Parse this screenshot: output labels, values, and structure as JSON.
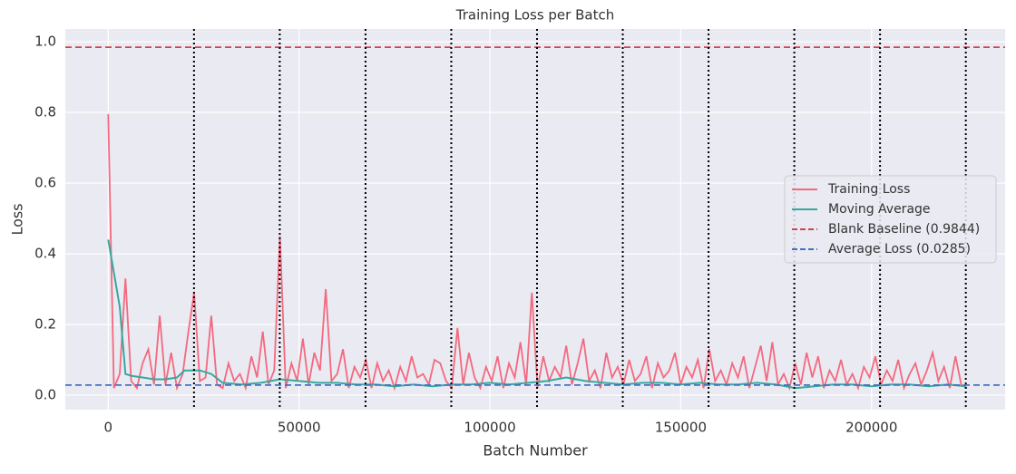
{
  "chart_data": {
    "type": "line",
    "title": "Training Loss per Batch",
    "xlabel": "Batch Number",
    "ylabel": "Loss",
    "xlim": [
      -11250,
      235000
    ],
    "ylim": [
      -0.041,
      1.036
    ],
    "xticks": [
      0,
      50000,
      100000,
      150000,
      200000
    ],
    "yticks": [
      {
        "value": 0,
        "label": "0.0"
      },
      0.2,
      0.4,
      0.6,
      0.8,
      {
        "value": 1,
        "label": "1.0"
      }
    ],
    "grid": true,
    "legend": "center right",
    "series": [
      {
        "name": "Training Loss",
        "color": "#f4697f",
        "x": [
          0,
          1500,
          3000,
          4500,
          6000,
          7500,
          9000,
          10500,
          12000,
          13500,
          15000,
          16500,
          18000,
          19500,
          21000,
          22500,
          24000,
          25500,
          27000,
          28500,
          30000,
          31500,
          33000,
          34500,
          36000,
          37500,
          39000,
          40500,
          42000,
          43500,
          45000,
          46500,
          48000,
          49500,
          51000,
          52500,
          54000,
          55500,
          57000,
          58500,
          60000,
          61500,
          63000,
          64500,
          66000,
          67500,
          69000,
          70500,
          72000,
          73500,
          75000,
          76500,
          78000,
          79500,
          81000,
          82500,
          84000,
          85500,
          87000,
          88500,
          90000,
          91500,
          93000,
          94500,
          96000,
          97500,
          99000,
          100500,
          102000,
          103500,
          105000,
          106500,
          108000,
          109500,
          111000,
          112500,
          114000,
          115500,
          117000,
          118500,
          120000,
          121500,
          123000,
          124500,
          126000,
          127500,
          129000,
          130500,
          132000,
          133500,
          135000,
          136500,
          138000,
          139500,
          141000,
          142500,
          144000,
          145500,
          147000,
          148500,
          150000,
          151500,
          153000,
          154500,
          156000,
          157500,
          159000,
          160500,
          162000,
          163500,
          165000,
          166500,
          168000,
          169500,
          171000,
          172500,
          174000,
          175500,
          177000,
          178500,
          180000,
          181500,
          183000,
          184500,
          186000,
          187500,
          189000,
          190500,
          192000,
          193500,
          195000,
          196500,
          198000,
          199500,
          201000,
          202500,
          204000,
          205500,
          207000,
          208500,
          210000,
          211500,
          213000,
          214500,
          216000,
          217500,
          219000,
          220500,
          222000,
          223500,
          225000
        ],
        "values": [
          0.795,
          0.02,
          0.06,
          0.33,
          0.04,
          0.02,
          0.09,
          0.13,
          0.03,
          0.225,
          0.03,
          0.12,
          0.02,
          0.06,
          0.18,
          0.29,
          0.04,
          0.05,
          0.225,
          0.03,
          0.02,
          0.09,
          0.04,
          0.06,
          0.02,
          0.11,
          0.05,
          0.18,
          0.03,
          0.07,
          0.45,
          0.02,
          0.09,
          0.04,
          0.16,
          0.03,
          0.12,
          0.07,
          0.3,
          0.04,
          0.06,
          0.13,
          0.02,
          0.08,
          0.05,
          0.1,
          0.02,
          0.09,
          0.04,
          0.07,
          0.02,
          0.08,
          0.04,
          0.11,
          0.05,
          0.06,
          0.03,
          0.1,
          0.09,
          0.04,
          0.02,
          0.19,
          0.03,
          0.12,
          0.05,
          0.02,
          0.08,
          0.04,
          0.11,
          0.02,
          0.09,
          0.05,
          0.15,
          0.03,
          0.29,
          0.02,
          0.11,
          0.04,
          0.08,
          0.05,
          0.14,
          0.03,
          0.09,
          0.16,
          0.04,
          0.07,
          0.02,
          0.12,
          0.05,
          0.08,
          0.03,
          0.1,
          0.04,
          0.06,
          0.11,
          0.02,
          0.09,
          0.05,
          0.07,
          0.12,
          0.03,
          0.08,
          0.05,
          0.1,
          0.02,
          0.13,
          0.04,
          0.07,
          0.03,
          0.09,
          0.05,
          0.11,
          0.02,
          0.08,
          0.14,
          0.04,
          0.15,
          0.03,
          0.06,
          0.02,
          0.09,
          0.03,
          0.12,
          0.05,
          0.11,
          0.02,
          0.07,
          0.04,
          0.1,
          0.03,
          0.06,
          0.02,
          0.08,
          0.05,
          0.11,
          0.03,
          0.07,
          0.04,
          0.1,
          0.02,
          0.06,
          0.09,
          0.03,
          0.07,
          0.12,
          0.04,
          0.08,
          0.02,
          0.11,
          0.03,
          0.02
        ]
      },
      {
        "name": "Moving Average",
        "color": "#36a89e",
        "x": [
          0,
          3000,
          4500,
          6000,
          9000,
          12000,
          15000,
          18000,
          20000,
          24000,
          27000,
          30000,
          35000,
          40000,
          45000,
          50000,
          55000,
          60000,
          65000,
          70000,
          75000,
          80000,
          85000,
          90000,
          95000,
          100000,
          105000,
          110000,
          115000,
          120000,
          125000,
          130000,
          135000,
          140000,
          145000,
          150000,
          155000,
          160000,
          165000,
          170000,
          175000,
          180000,
          185000,
          190000,
          195000,
          200000,
          205000,
          210000,
          215000,
          220000,
          224700
        ],
        "values": [
          0.44,
          0.25,
          0.06,
          0.055,
          0.05,
          0.045,
          0.045,
          0.05,
          0.07,
          0.07,
          0.06,
          0.035,
          0.03,
          0.035,
          0.045,
          0.04,
          0.035,
          0.035,
          0.03,
          0.03,
          0.025,
          0.03,
          0.025,
          0.03,
          0.03,
          0.035,
          0.03,
          0.035,
          0.04,
          0.05,
          0.04,
          0.035,
          0.03,
          0.035,
          0.035,
          0.03,
          0.035,
          0.03,
          0.03,
          0.035,
          0.03,
          0.02,
          0.025,
          0.03,
          0.03,
          0.025,
          0.03,
          0.03,
          0.025,
          0.03,
          0.025
        ]
      }
    ],
    "hlines": [
      {
        "name": "Blank Baseline (0.9844)",
        "color": "#d1434f",
        "value": 0.9844
      },
      {
        "name": "Average Loss (0.0285)",
        "color": "#4470c0",
        "value": 0.0285
      }
    ],
    "vlines": {
      "color": "#000000",
      "values": [
        22470,
        44940,
        67410,
        89880,
        112350,
        134820,
        157290,
        179760,
        202230,
        224700
      ]
    }
  }
}
